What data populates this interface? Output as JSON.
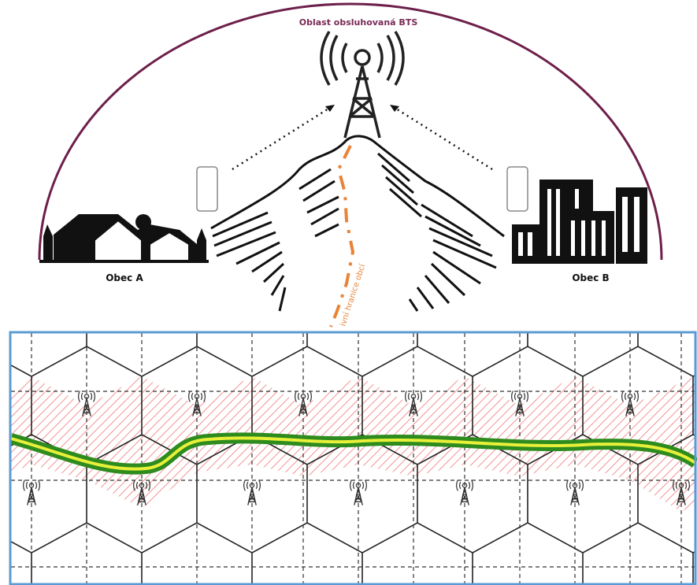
{
  "diagram": {
    "title": "Oblast obsluhovaná BTS",
    "areas": [
      {
        "label": "Obec A"
      },
      {
        "label": "Obec B"
      }
    ],
    "boundary_label": "ivní hranice obcí"
  }
}
